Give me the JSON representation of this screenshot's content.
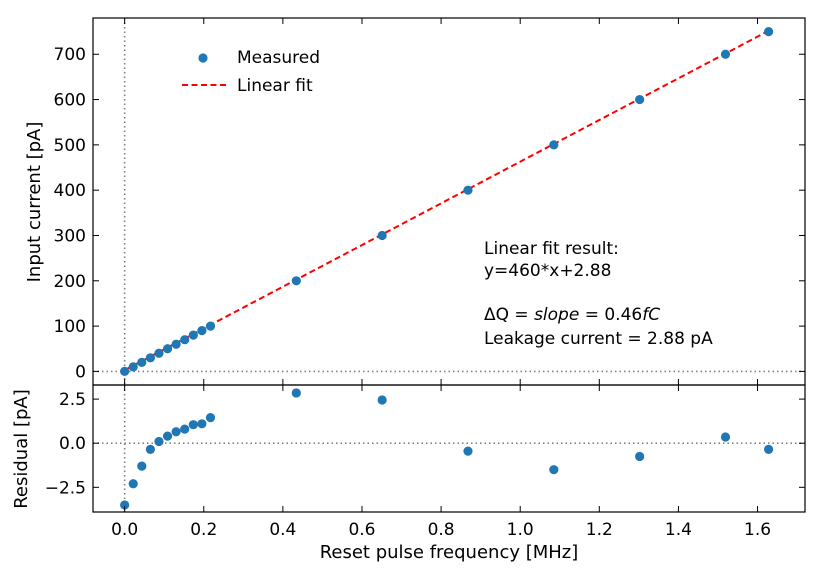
{
  "chart_data": [
    {
      "type": "scatter",
      "panel": "top",
      "xlabel": "",
      "ylabel": "Input current [pA]",
      "xlim": [
        -0.08,
        1.72
      ],
      "ylim": [
        -30,
        780
      ],
      "xticks": [
        0.0,
        0.2,
        0.4,
        0.6,
        0.8,
        1.0,
        1.2,
        1.4,
        1.6
      ],
      "yticks": [
        0,
        100,
        200,
        300,
        400,
        500,
        600,
        700
      ],
      "ytick_labels": [
        "0",
        "100",
        "200",
        "300",
        "400",
        "500",
        "600",
        "700"
      ],
      "series": [
        {
          "name": "Measured",
          "kind": "points",
          "color": "#1f77b4",
          "x": [
            0.0,
            0.0217,
            0.0434,
            0.0651,
            0.0868,
            0.1085,
            0.1302,
            0.1519,
            0.1736,
            0.1953,
            0.217,
            0.434,
            0.651,
            0.868,
            1.085,
            1.302,
            1.519,
            1.628
          ],
          "y": [
            0,
            10,
            20,
            30,
            40,
            50,
            60,
            70,
            80,
            90,
            100,
            200,
            300,
            400,
            500,
            600,
            700,
            750
          ]
        },
        {
          "name": "Linear fit",
          "kind": "dashed-line",
          "color": "#ff0000",
          "slope": 460,
          "intercept": 2.88,
          "x_range": [
            0.0,
            1.628
          ]
        }
      ],
      "reference_lines": {
        "x": 0,
        "y": 0
      },
      "legend": {
        "position": "top-left",
        "entries": [
          "Measured",
          "Linear fit"
        ]
      },
      "annotations": {
        "line1": "Linear fit result:",
        "line2": "y=460*x+2.88",
        "delta_q_prefix": "ΔQ = ",
        "delta_q_slope": "slope",
        "delta_q_eq": " = 0.46",
        "delta_q_unit": "fC",
        "leakage": "Leakage current = 2.88 pA"
      }
    },
    {
      "type": "scatter",
      "panel": "bottom",
      "xlabel": "Reset pulse frequency [MHz]",
      "ylabel": "Residual [pA]",
      "xlim": [
        -0.08,
        1.72
      ],
      "ylim": [
        -3.9,
        3.3
      ],
      "xticks": [
        0.0,
        0.2,
        0.4,
        0.6,
        0.8,
        1.0,
        1.2,
        1.4,
        1.6
      ],
      "xtick_labels": [
        "0.0",
        "0.2",
        "0.4",
        "0.6",
        "0.8",
        "1.0",
        "1.2",
        "1.4",
        "1.6"
      ],
      "yticks": [
        -2.5,
        0.0,
        2.5
      ],
      "ytick_labels": [
        "−2.5",
        "0.0",
        "2.5"
      ],
      "series": [
        {
          "name": "Residual",
          "color": "#1f77b4",
          "x": [
            0.0,
            0.0217,
            0.0434,
            0.0651,
            0.0868,
            0.1085,
            0.1302,
            0.1519,
            0.1736,
            0.1953,
            0.217,
            0.434,
            0.651,
            0.868,
            1.085,
            1.302,
            1.519,
            1.628
          ],
          "y": [
            -3.5,
            -2.3,
            -1.3,
            -0.35,
            0.1,
            0.4,
            0.65,
            0.8,
            1.05,
            1.1,
            1.45,
            2.85,
            2.45,
            -0.45,
            -1.5,
            -0.75,
            0.35,
            -0.35
          ]
        }
      ],
      "reference_lines": {
        "x": 0,
        "y": 0
      }
    }
  ]
}
